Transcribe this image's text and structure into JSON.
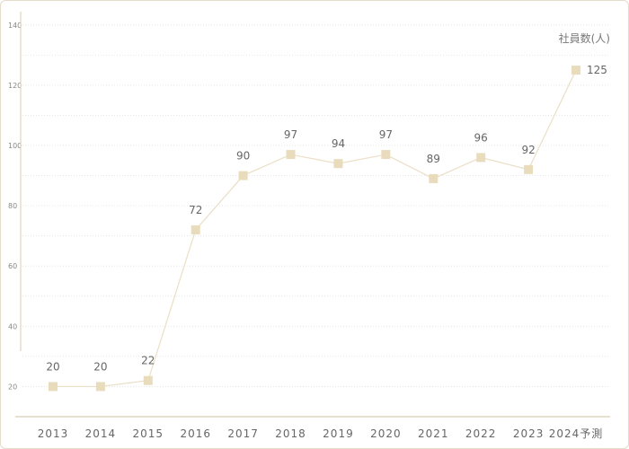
{
  "chart_data": {
    "type": "line",
    "categories": [
      "2013",
      "2014",
      "2015",
      "2016",
      "2017",
      "2018",
      "2019",
      "2020",
      "2021",
      "2022",
      "2023",
      "2024予測"
    ],
    "series": [
      {
        "values": [
          20,
          20,
          22,
          72,
          90,
          97,
          94,
          97,
          89,
          96,
          92,
          125
        ]
      }
    ],
    "data_labels": [
      "20",
      "20",
      "22",
      "72",
      "90",
      "97",
      "94",
      "97",
      "89",
      "96",
      "92",
      "125"
    ],
    "unit_label": "社員数(人)",
    "y_ticks": [
      "20",
      "40",
      "60",
      "80",
      "100",
      "120",
      "140"
    ],
    "ylim": [
      10,
      145
    ],
    "grid": true,
    "colors": {
      "line": "#eadfc6",
      "marker": "#e9dcbc",
      "axis": "#d9cdb0",
      "grid": "#e6e6e6"
    }
  }
}
